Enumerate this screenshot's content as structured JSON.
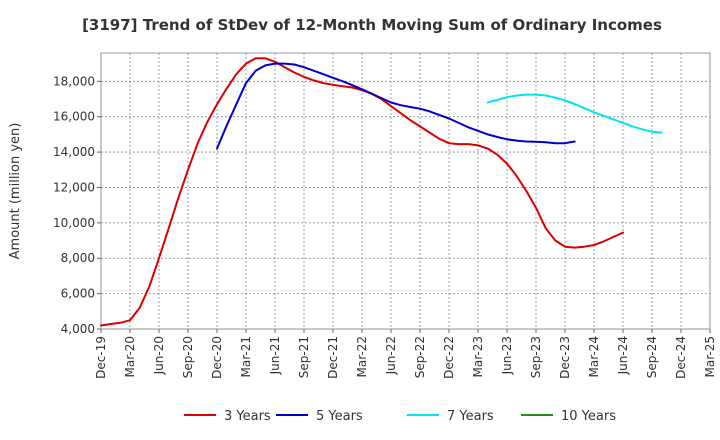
{
  "chart_data": {
    "type": "line",
    "title": "[3197]  Trend of StDev of 12-Month Moving Sum of Ordinary Incomes",
    "xlabel": "",
    "ylabel": "Amount (million yen)",
    "ylim": [
      4000,
      19600
    ],
    "y_ticks": [
      4000,
      6000,
      8000,
      10000,
      12000,
      14000,
      16000,
      18000
    ],
    "y_tick_labels": [
      "4,000",
      "6,000",
      "8,000",
      "10,000",
      "12,000",
      "14,000",
      "16,000",
      "18,000"
    ],
    "x_tick_labels": [
      "Dec-19",
      "Mar-20",
      "Jun-20",
      "Sep-20",
      "Dec-20",
      "Mar-21",
      "Jun-21",
      "Sep-21",
      "Dec-21",
      "Mar-22",
      "Jun-22",
      "Sep-22",
      "Dec-22",
      "Mar-23",
      "Jun-23",
      "Sep-23",
      "Dec-23",
      "Mar-24",
      "Jun-24",
      "Sep-24",
      "Dec-24",
      "Mar-25"
    ],
    "grid": true,
    "legend_position": "bottom",
    "series": [
      {
        "name": "3 Years",
        "color": "#dd0000",
        "start_index": 0,
        "values": [
          4200,
          4280,
          4350,
          4500,
          5200,
          6400,
          8000,
          9700,
          11400,
          13000,
          14500,
          15700,
          16700,
          17600,
          18400,
          19000,
          19300,
          19300,
          19100,
          18800,
          18500,
          18250,
          18050,
          17900,
          17800,
          17720,
          17650,
          17500,
          17300,
          17000,
          16600,
          16200,
          15800,
          15450,
          15100,
          14750,
          14500,
          14450,
          14450,
          14380,
          14200,
          13850,
          13350,
          12650,
          11800,
          10850,
          9700,
          9000,
          8650,
          8600,
          8650,
          8750,
          8950,
          9200,
          9450
        ]
      },
      {
        "name": "5 Years",
        "color": "#0000cc",
        "start_index": 12,
        "values": [
          14200,
          15500,
          16700,
          17900,
          18600,
          18900,
          19000,
          19000,
          18950,
          18800,
          18600,
          18400,
          18200,
          18000,
          17780,
          17550,
          17300,
          17050,
          16800,
          16650,
          16550,
          16450,
          16300,
          16100,
          15900,
          15650,
          15400,
          15200,
          15000,
          14850,
          14720,
          14650,
          14600,
          14580,
          14550,
          14500,
          14500,
          14600
        ]
      },
      {
        "name": "7 Years",
        "color": "#00e5ee",
        "start_index": 40,
        "values": [
          16800,
          16950,
          17100,
          17200,
          17250,
          17250,
          17200,
          17080,
          16920,
          16720,
          16480,
          16250,
          16050,
          15850,
          15650,
          15450,
          15280,
          15150,
          15100
        ]
      },
      {
        "name": "10 Years",
        "color": "#228b22",
        "start_index": 0,
        "values": []
      }
    ]
  }
}
